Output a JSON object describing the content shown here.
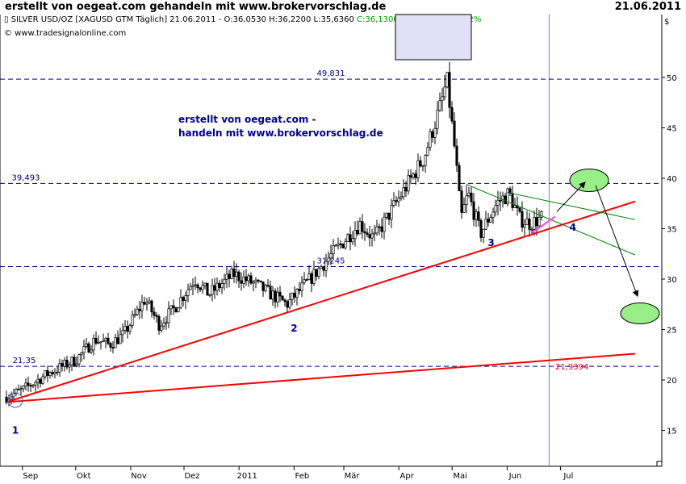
{
  "header": {
    "title": "erstellt von oegeat.com gehandeln mit www.brokervorschlag.de",
    "date": "21.06.2011",
    "symbol_icon": "chart-glyph-icon",
    "symbol": "SILVER USD/OZ [XAGUSD GTM  Täglich] 21.06.2011",
    "ohl": " - O:36,0530 H:36,2200 L:35,6360",
    "change": " C:36,1300 +0,0970 +0,2692%",
    "source": "© www.tradesignalonline.com"
  },
  "chart_data": {
    "type": "candlestick",
    "instrument": "SILVER USD/OZ",
    "currency_label": "$",
    "yticks": [
      15,
      20,
      25,
      30,
      35,
      40,
      45,
      50
    ],
    "ylim": [
      12,
      53
    ],
    "xticks": [
      "Sep",
      "Okt",
      "Nov",
      "Dez",
      "2011",
      "Feb",
      "Mär",
      "Apr",
      "Mai",
      "Jun",
      "Jul"
    ],
    "price_path": [
      [
        "2010-08-23",
        18.3
      ],
      [
        "2010-09-01",
        19.0
      ],
      [
        "2010-09-15",
        20.6
      ],
      [
        "2010-10-01",
        22.0
      ],
      [
        "2010-10-12",
        24.0
      ],
      [
        "2010-10-20",
        23.5
      ],
      [
        "2010-10-28",
        24.5
      ],
      [
        "2010-11-09",
        28.0
      ],
      [
        "2010-11-17",
        25.5
      ],
      [
        "2010-11-25",
        27.0
      ],
      [
        "2010-12-07",
        30.0
      ],
      [
        "2010-12-15",
        28.5
      ],
      [
        "2010-12-29",
        30.5
      ],
      [
        "2011-01-10",
        29.5
      ],
      [
        "2011-01-28",
        27.5
      ],
      [
        "2011-02-10",
        30.0
      ],
      [
        "2011-02-25",
        33.0
      ],
      [
        "2011-03-10",
        35.5
      ],
      [
        "2011-03-18",
        34.0
      ],
      [
        "2011-04-01",
        38.0
      ],
      [
        "2011-04-15",
        42.0
      ],
      [
        "2011-04-25",
        47.5
      ],
      [
        "2011-04-28",
        49.8
      ],
      [
        "2011-05-03",
        42.0
      ],
      [
        "2011-05-06",
        36.0
      ],
      [
        "2011-05-10",
        38.5
      ],
      [
        "2011-05-17",
        34.5
      ],
      [
        "2011-05-26",
        37.5
      ],
      [
        "2011-06-02",
        38.5
      ],
      [
        "2011-06-08",
        36.0
      ],
      [
        "2011-06-14",
        35.5
      ],
      [
        "2011-06-21",
        36.13
      ]
    ],
    "horizontal_levels": [
      {
        "label": "49,831",
        "value": 49.831
      },
      {
        "label": "39,493",
        "value": 39.493
      },
      {
        "label": "31,245",
        "value": 31.245
      },
      {
        "label": "21,35",
        "value": 21.35
      }
    ],
    "trendlines": [
      {
        "name": "",
        "from": [
          "2010-08-23",
          17.8
        ],
        "to": [
          "2011-08-12",
          37.7
        ],
        "color": "#ff0000"
      },
      {
        "name": "",
        "from": [
          "2010-08-23",
          17.8
        ],
        "to": [
          "2011-08-12",
          22.6
        ],
        "color": "#ff0000"
      },
      {
        "name": "",
        "from": [
          "2011-05-09",
          39.4
        ],
        "to": [
          "2011-08-12",
          32.4
        ],
        "color": "#008000"
      },
      {
        "name": "",
        "from": [
          "2011-06-01",
          38.6
        ],
        "to": [
          "2011-08-12",
          35.9
        ],
        "color": "#008000"
      }
    ],
    "trendline_value_label": "21,9394",
    "wave_labels": [
      "1",
      "2",
      "3",
      "4"
    ],
    "watermark_line1": "erstellt von oegeat.com -",
    "watermark_line2": "handeln mit www.brokervorschlag.de",
    "colors": {
      "candle_up": "#ffffff",
      "candle_down": "#000000",
      "level_line": "#000080",
      "trendline": "#ff0000",
      "channel": "#008000",
      "target_fill": "#99ee88",
      "watermark": "#000099",
      "wave_label": "#000099",
      "current_day_line": "#5599bb",
      "pink_line": "#ff44ff",
      "info_box": "#e0e0f8"
    }
  }
}
